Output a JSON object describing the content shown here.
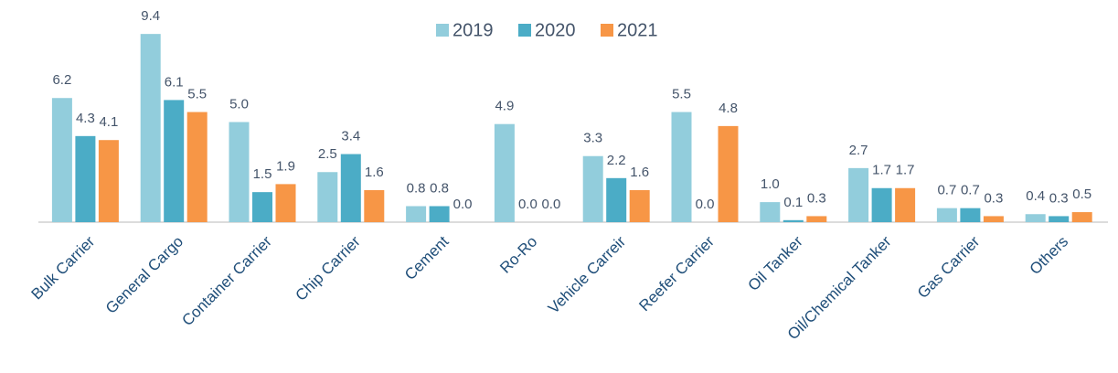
{
  "chart_data": {
    "type": "bar",
    "categories": [
      "Bulk Carrier",
      "General Cargo",
      "Container Carrier",
      "Chip Carrier",
      "Cement",
      "Ro-Ro",
      "Vehicle Carreir",
      "Reefer Carrier",
      "Oil Tanker",
      "Oil/Chemical Tanker",
      "Gas Carrier",
      "Others"
    ],
    "series": [
      {
        "name": "2019",
        "color": "#92cddc",
        "values": [
          6.2,
          9.4,
          5.0,
          2.5,
          0.8,
          4.9,
          3.3,
          5.5,
          1.0,
          2.7,
          0.7,
          0.4
        ],
        "value_labels": [
          "6.2",
          "9.4",
          "5.0",
          "2.5",
          "0.8",
          "4.9",
          "3.3",
          "5.5",
          "1.0",
          "2.7",
          "0.7",
          "0.4"
        ]
      },
      {
        "name": "2020",
        "color": "#4bacc6",
        "values": [
          4.3,
          6.1,
          1.5,
          3.4,
          0.8,
          0.0,
          2.2,
          0.0,
          0.1,
          1.7,
          0.7,
          0.3
        ],
        "value_labels": [
          "4.3",
          "6.1",
          "1.5",
          "3.4",
          "0.8",
          "0.0",
          "2.2",
          "0.0",
          "0.1",
          "1.7",
          "0.7",
          "0.3"
        ]
      },
      {
        "name": "2021",
        "color": "#f79646",
        "values": [
          4.1,
          5.5,
          1.9,
          1.6,
          0.0,
          0.0,
          1.6,
          4.8,
          0.3,
          1.7,
          0.3,
          0.5
        ],
        "value_labels": [
          "4.1",
          "5.5",
          "1.9",
          "1.6",
          "0.0",
          "0.0",
          "1.6",
          "4.8",
          "0.3",
          "1.7",
          "0.3",
          "0.5"
        ]
      }
    ],
    "legend": "top"
  }
}
